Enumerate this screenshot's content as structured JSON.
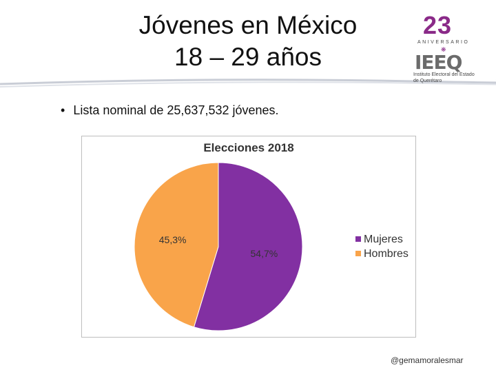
{
  "header": {
    "title_line1": "Jóvenes en México",
    "title_line2": "18 – 29 años"
  },
  "logo": {
    "number": "23",
    "subtitle": "ANIVERSARIO",
    "mark": "IEEQ",
    "institution": "Instituto Electoral del Estado de Querétaro"
  },
  "bullet": {
    "text": "Lista nominal de 25,637,532 jóvenes."
  },
  "footer": {
    "handle": "@gemamoralesmar"
  },
  "colors": {
    "mujeres": "#8230a2",
    "hombres": "#f9a44a",
    "logo_purple": "#8a2a88"
  },
  "chart_data": {
    "type": "pie",
    "title": "Elecciones 2018",
    "legend_position": "right",
    "slices": [
      {
        "name": "Mujeres",
        "value": 54.7,
        "label": "54,7%",
        "color": "#8230a2"
      },
      {
        "name": "Hombres",
        "value": 45.3,
        "label": "45,3%",
        "color": "#f9a44a"
      }
    ]
  }
}
